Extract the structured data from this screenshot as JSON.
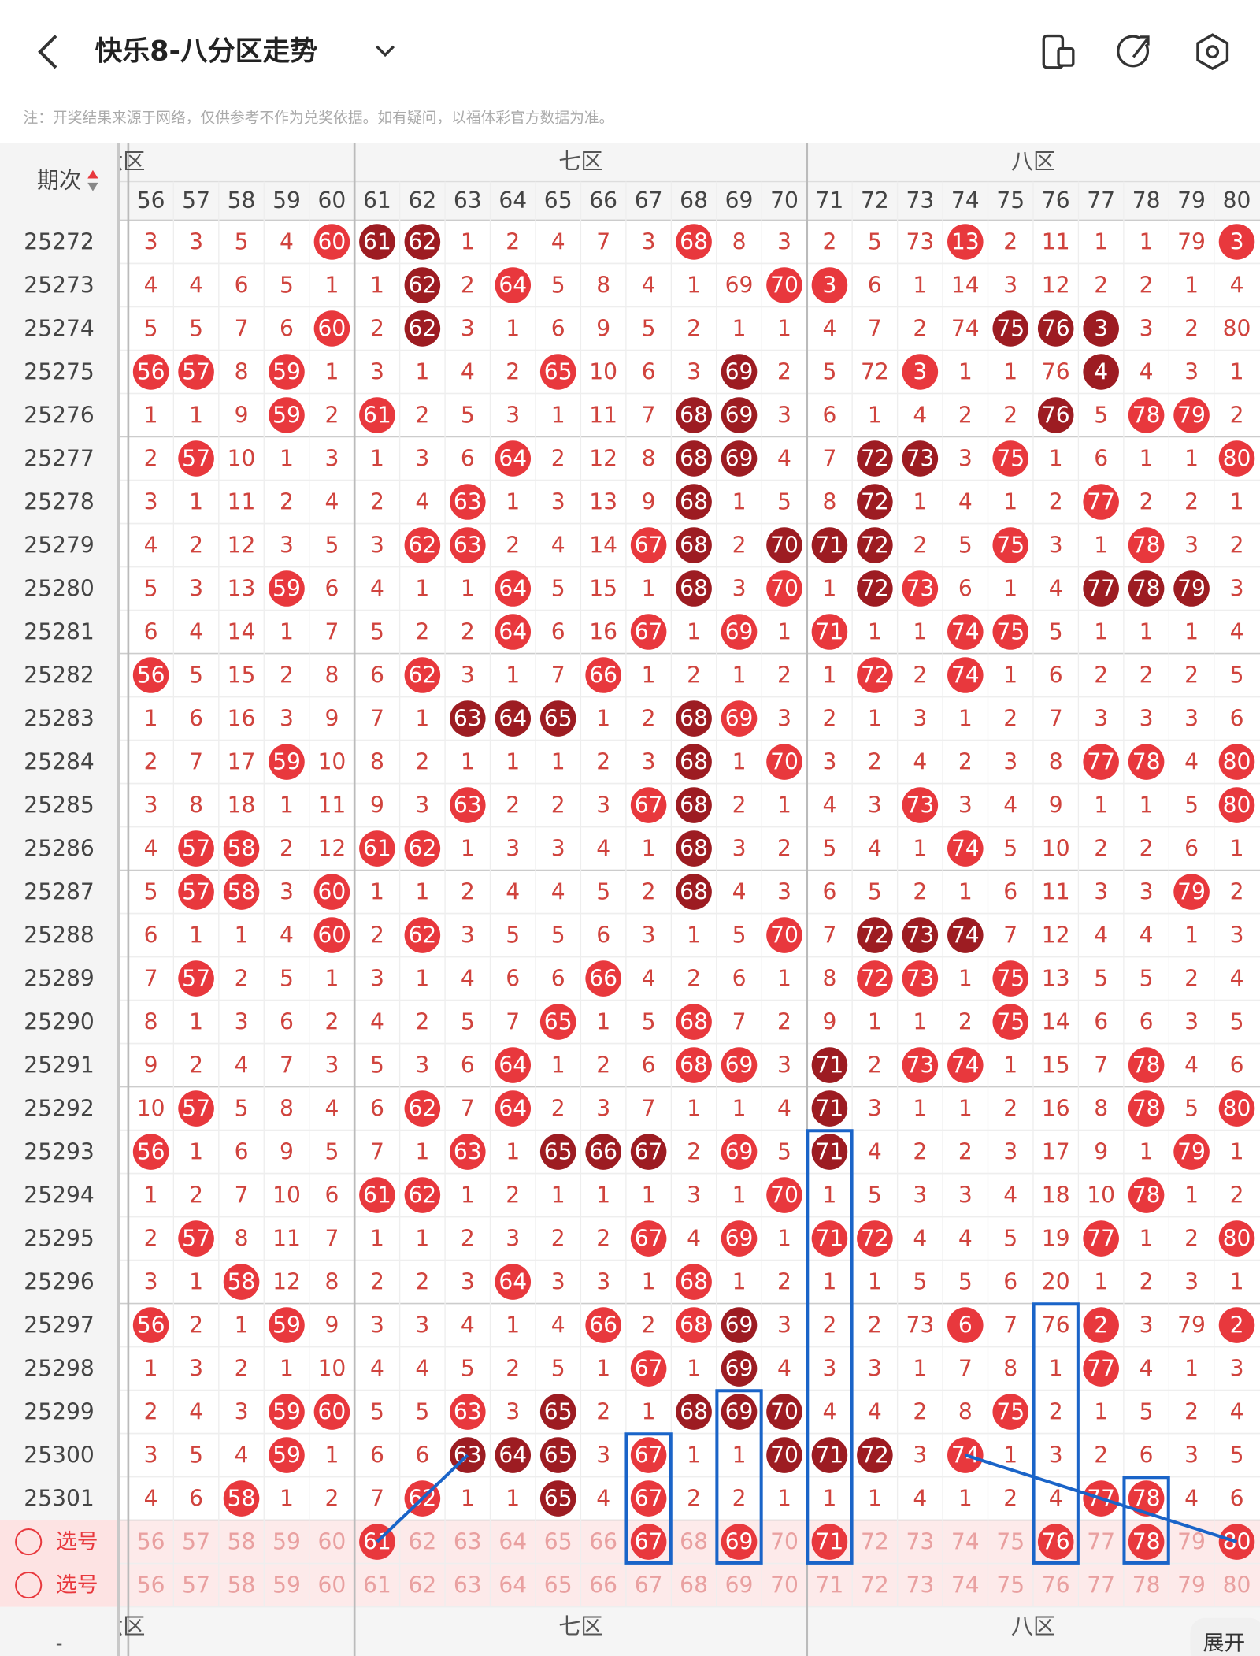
{
  "header": {
    "title": "快乐8-八分区走势",
    "notice": "注：开奖结果来源于网络，仅供参考不作为兑奖依据。如有疑问，以福体彩官方数据为准。"
  },
  "table": {
    "corner_label": "期次",
    "zones": [
      {
        "label": "六区",
        "columns": [
          56,
          57,
          58,
          59,
          60
        ]
      },
      {
        "label": "七区",
        "columns": [
          61,
          62,
          63,
          64,
          65,
          66,
          67,
          68,
          69,
          70
        ]
      },
      {
        "label": "八区",
        "columns": [
          71,
          72,
          73,
          74,
          75,
          76,
          77,
          78,
          79,
          80
        ]
      }
    ],
    "rows": [
      {
        "period": 25272,
        "values": [
          3,
          3,
          5,
          4,
          60,
          61,
          62,
          1,
          2,
          4,
          7,
          3,
          68,
          8,
          3,
          2,
          5,
          73,
          13,
          2,
          11,
          1,
          1,
          79,
          3
        ],
        "marks": "....rdd.....r.....r.....r."
      },
      {
        "period": 25273,
        "values": [
          4,
          4,
          6,
          5,
          1,
          1,
          62,
          2,
          64,
          5,
          8,
          4,
          1,
          69,
          70,
          3,
          6,
          1,
          14,
          3,
          12,
          2,
          2,
          1,
          4
        ],
        "marks": "......d.r.....rr.........."
      },
      {
        "period": 25274,
        "values": [
          5,
          5,
          7,
          6,
          60,
          2,
          62,
          3,
          1,
          6,
          9,
          5,
          2,
          1,
          1,
          4,
          7,
          2,
          74,
          75,
          76,
          3,
          3,
          2,
          80
        ],
        "marks": "....r.d............ddd...r"
      },
      {
        "period": 25275,
        "values": [
          56,
          57,
          8,
          59,
          1,
          3,
          1,
          4,
          2,
          65,
          10,
          6,
          3,
          69,
          2,
          5,
          72,
          3,
          1,
          1,
          76,
          4,
          4,
          3,
          1
        ],
        "marks": "rr.r.....r...d...r...d...."
      },
      {
        "period": 25276,
        "values": [
          1,
          1,
          9,
          59,
          2,
          61,
          2,
          5,
          3,
          1,
          11,
          7,
          68,
          69,
          3,
          6,
          1,
          4,
          2,
          2,
          76,
          5,
          78,
          79,
          2
        ],
        "marks": "...r.r......dd......d.rr."
      },
      {
        "period": 25277,
        "values": [
          2,
          57,
          10,
          1,
          3,
          1,
          3,
          6,
          64,
          2,
          12,
          8,
          68,
          69,
          4,
          7,
          72,
          73,
          3,
          75,
          1,
          6,
          1,
          1,
          80
        ],
        "marks": ".r......r...dd..dd.r....r"
      },
      {
        "period": 25278,
        "values": [
          3,
          1,
          11,
          2,
          4,
          2,
          4,
          63,
          1,
          3,
          13,
          9,
          68,
          1,
          5,
          8,
          72,
          1,
          4,
          1,
          2,
          77,
          2,
          2,
          1
        ],
        "marks": ".......r....d...d....r..."
      },
      {
        "period": 25279,
        "values": [
          4,
          2,
          12,
          3,
          5,
          3,
          62,
          63,
          2,
          4,
          14,
          67,
          68,
          2,
          70,
          71,
          72,
          2,
          5,
          75,
          3,
          1,
          78,
          3,
          2
        ],
        "marks": "......rr...rd.ddd..r..r.."
      },
      {
        "period": 25280,
        "values": [
          5,
          3,
          13,
          59,
          6,
          4,
          1,
          1,
          64,
          5,
          15,
          1,
          68,
          3,
          70,
          1,
          72,
          73,
          6,
          1,
          4,
          77,
          78,
          79,
          3
        ],
        "marks": "...r....r...d.r.dr...ddd."
      },
      {
        "period": 25281,
        "values": [
          6,
          4,
          14,
          1,
          7,
          5,
          2,
          2,
          64,
          6,
          16,
          67,
          1,
          69,
          1,
          71,
          1,
          1,
          74,
          75,
          5,
          1,
          1,
          1,
          4
        ],
        "marks": "........r..r.r.r..rr....."
      },
      {
        "period": 25282,
        "values": [
          56,
          5,
          15,
          2,
          8,
          6,
          62,
          3,
          1,
          7,
          66,
          1,
          2,
          1,
          2,
          1,
          72,
          2,
          74,
          1,
          6,
          2,
          2,
          2,
          5
        ],
        "marks": "r.....r...r.....r.r......"
      },
      {
        "period": 25283,
        "values": [
          1,
          6,
          16,
          3,
          9,
          7,
          1,
          63,
          64,
          65,
          1,
          2,
          68,
          69,
          3,
          2,
          1,
          3,
          1,
          2,
          7,
          3,
          3,
          3,
          6
        ],
        "marks": ".......ddd..dr............"
      },
      {
        "period": 25284,
        "values": [
          2,
          7,
          17,
          59,
          10,
          8,
          2,
          1,
          1,
          1,
          2,
          3,
          68,
          1,
          70,
          3,
          2,
          4,
          2,
          3,
          8,
          77,
          78,
          4,
          80
        ],
        "marks": "...r........d.r......rr.r"
      },
      {
        "period": 25285,
        "values": [
          3,
          8,
          18,
          1,
          11,
          9,
          3,
          63,
          2,
          2,
          3,
          67,
          68,
          2,
          1,
          4,
          3,
          73,
          3,
          4,
          9,
          1,
          1,
          5,
          80
        ],
        "marks": ".......r...rd....r......r"
      },
      {
        "period": 25286,
        "values": [
          4,
          57,
          58,
          2,
          12,
          61,
          62,
          1,
          3,
          3,
          4,
          1,
          68,
          3,
          2,
          5,
          4,
          1,
          74,
          5,
          10,
          2,
          2,
          6,
          1
        ],
        "marks": ".rr..rr.....d.....r......"
      },
      {
        "period": 25287,
        "values": [
          5,
          57,
          58,
          3,
          60,
          1,
          1,
          2,
          4,
          4,
          5,
          2,
          68,
          4,
          3,
          6,
          5,
          2,
          1,
          6,
          11,
          3,
          3,
          79,
          2
        ],
        "marks": ".rr.r.......d..........r."
      },
      {
        "period": 25288,
        "values": [
          6,
          1,
          1,
          4,
          60,
          2,
          62,
          3,
          5,
          5,
          6,
          3,
          1,
          5,
          70,
          7,
          72,
          73,
          74,
          7,
          12,
          4,
          4,
          1,
          3
        ],
        "marks": "....r.r.......r.ddd......"
      },
      {
        "period": 25289,
        "values": [
          7,
          57,
          2,
          5,
          1,
          3,
          1,
          4,
          6,
          6,
          66,
          4,
          2,
          6,
          1,
          8,
          72,
          73,
          1,
          75,
          13,
          5,
          5,
          2,
          4
        ],
        "marks": ".r........r.....rr.r....."
      },
      {
        "period": 25290,
        "values": [
          8,
          1,
          3,
          6,
          2,
          4,
          2,
          5,
          7,
          65,
          1,
          5,
          68,
          7,
          2,
          9,
          1,
          1,
          2,
          75,
          14,
          6,
          6,
          3,
          5
        ],
        "marks": ".........r..r......r....."
      },
      {
        "period": 25291,
        "values": [
          9,
          2,
          4,
          7,
          3,
          5,
          3,
          6,
          64,
          1,
          2,
          6,
          68,
          69,
          3,
          71,
          2,
          73,
          74,
          1,
          15,
          7,
          78,
          4,
          6
        ],
        "marks": "........r...rr.d.rr...r.."
      },
      {
        "period": 25292,
        "values": [
          10,
          57,
          5,
          8,
          4,
          6,
          62,
          7,
          64,
          2,
          3,
          7,
          1,
          1,
          4,
          71,
          3,
          1,
          1,
          2,
          16,
          8,
          78,
          5,
          80
        ],
        "marks": ".r....r.r......d......r.r"
      },
      {
        "period": 25293,
        "values": [
          56,
          1,
          6,
          9,
          5,
          7,
          1,
          63,
          1,
          65,
          66,
          67,
          2,
          69,
          5,
          71,
          4,
          2,
          2,
          3,
          17,
          9,
          1,
          79,
          1
        ],
        "marks": "r......r.ddd.r.d.......r."
      },
      {
        "period": 25294,
        "values": [
          1,
          2,
          7,
          10,
          6,
          61,
          62,
          1,
          2,
          1,
          1,
          1,
          3,
          1,
          70,
          1,
          5,
          3,
          3,
          4,
          18,
          10,
          78,
          1,
          2
        ],
        "marks": ".....rr.......r.......r.."
      },
      {
        "period": 25295,
        "values": [
          2,
          57,
          8,
          11,
          7,
          1,
          1,
          2,
          3,
          2,
          2,
          67,
          4,
          69,
          1,
          71,
          72,
          4,
          4,
          5,
          19,
          77,
          1,
          2,
          80
        ],
        "marks": ".r.........r.r.rr....r..r"
      },
      {
        "period": 25296,
        "values": [
          3,
          1,
          58,
          12,
          8,
          2,
          2,
          3,
          64,
          3,
          3,
          1,
          68,
          1,
          2,
          1,
          1,
          5,
          5,
          6,
          20,
          1,
          2,
          3,
          1
        ],
        "marks": "..r.....r...r............"
      },
      {
        "period": 25297,
        "values": [
          56,
          2,
          1,
          59,
          9,
          3,
          3,
          4,
          1,
          4,
          66,
          2,
          68,
          69,
          3,
          2,
          2,
          73,
          6,
          7,
          76,
          2,
          3,
          79,
          2
        ],
        "marks": "r..r......r.rd....r..r..r."
      },
      {
        "period": 25298,
        "values": [
          1,
          3,
          2,
          1,
          10,
          4,
          4,
          5,
          2,
          5,
          1,
          67,
          1,
          69,
          4,
          3,
          3,
          1,
          7,
          8,
          1,
          77,
          4,
          1,
          3
        ],
        "marks": "...........r.d.......r..."
      },
      {
        "period": 25299,
        "values": [
          2,
          4,
          3,
          59,
          60,
          5,
          5,
          63,
          3,
          65,
          2,
          1,
          68,
          69,
          70,
          4,
          4,
          2,
          8,
          75,
          2,
          1,
          5,
          2,
          4
        ],
        "marks": "...rr..r.d..ddd....r....."
      },
      {
        "period": 25300,
        "values": [
          3,
          5,
          4,
          59,
          1,
          6,
          6,
          63,
          64,
          65,
          3,
          67,
          1,
          1,
          70,
          71,
          72,
          3,
          74,
          1,
          3,
          2,
          6,
          3,
          5
        ],
        "marks": "...r...ddd.r..ddd.r......"
      },
      {
        "period": 25301,
        "values": [
          4,
          6,
          58,
          1,
          2,
          7,
          62,
          1,
          1,
          65,
          4,
          67,
          2,
          2,
          1,
          1,
          1,
          4,
          1,
          2,
          4,
          77,
          78,
          4,
          6
        ],
        "marks": "..r...r..d.r.........rr.."
      }
    ],
    "selection": [
      {
        "label": "选号",
        "marks": ".....r.....r.r.r....r.r.r"
      },
      {
        "label": "选号",
        "marks": "........................."
      }
    ]
  },
  "footer": {
    "dash": "-",
    "expand": "展开"
  }
}
